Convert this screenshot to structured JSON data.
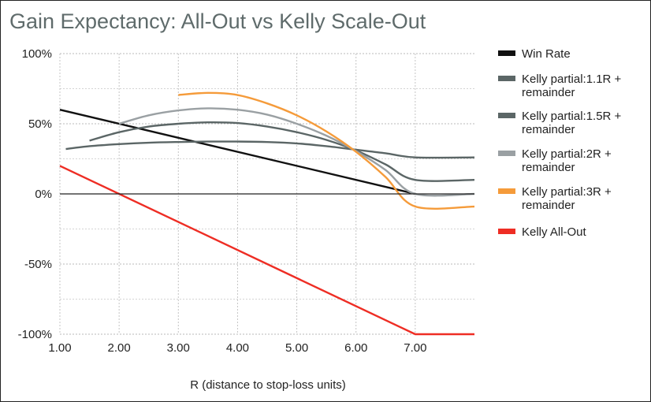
{
  "chart_data": {
    "type": "line",
    "title": "Gain Expectancy: All-Out vs Kelly Scale-Out",
    "xlabel": "R (distance to stop-loss units)",
    "ylabel": "",
    "xlim": [
      1.0,
      8.0
    ],
    "ylim": [
      -100,
      100
    ],
    "x_ticks": [
      "1.00",
      "2.00",
      "3.00",
      "4.00",
      "5.00",
      "6.00",
      "7.00"
    ],
    "x_tick_values": [
      1,
      2,
      3,
      4,
      5,
      6,
      7
    ],
    "y_ticks": [
      "100%",
      "50%",
      "0%",
      "-50%",
      "-100%"
    ],
    "y_tick_values": [
      100,
      50,
      0,
      -50,
      -100
    ],
    "grid": "dotted-both",
    "legend_position": "right",
    "series": [
      {
        "name": "Win Rate",
        "color": "#111111",
        "points": [
          [
            1.0,
            60
          ],
          [
            7.0,
            0
          ]
        ]
      },
      {
        "name": "Kelly partial:1.1R + remainder",
        "color": "#5b6666",
        "points": [
          [
            1.1,
            32
          ],
          [
            1.5,
            34
          ],
          [
            2.0,
            35.5
          ],
          [
            2.5,
            36.5
          ],
          [
            3.0,
            37
          ],
          [
            3.5,
            37.3
          ],
          [
            4.0,
            37.3
          ],
          [
            4.5,
            37
          ],
          [
            5.0,
            36
          ],
          [
            5.5,
            34
          ],
          [
            6.0,
            31.5
          ],
          [
            6.5,
            29
          ],
          [
            7.0,
            26
          ],
          [
            8.0,
            26
          ]
        ]
      },
      {
        "name": "Kelly partial:1.5R + remainder",
        "color": "#5b6666",
        "points": [
          [
            1.5,
            38
          ],
          [
            2.0,
            44
          ],
          [
            2.5,
            48
          ],
          [
            3.0,
            50
          ],
          [
            3.5,
            51
          ],
          [
            4.0,
            50.5
          ],
          [
            4.5,
            48
          ],
          [
            5.0,
            44
          ],
          [
            5.5,
            38.5
          ],
          [
            6.0,
            31
          ],
          [
            6.5,
            21
          ],
          [
            7.0,
            10
          ],
          [
            8.0,
            10
          ]
        ]
      },
      {
        "name": "Kelly partial:2R + remainder",
        "color": "#9aa0a3",
        "points": [
          [
            2.0,
            50
          ],
          [
            2.5,
            56
          ],
          [
            3.0,
            59.5
          ],
          [
            3.5,
            61
          ],
          [
            4.0,
            60
          ],
          [
            4.5,
            56.5
          ],
          [
            5.0,
            50
          ],
          [
            5.5,
            41.5
          ],
          [
            6.0,
            30.5
          ],
          [
            6.5,
            17
          ],
          [
            7.0,
            0
          ],
          [
            8.0,
            0
          ]
        ]
      },
      {
        "name": "Kelly partial:3R + remainder",
        "color": "#f59b3a",
        "points": [
          [
            3.0,
            70.5
          ],
          [
            3.5,
            72
          ],
          [
            4.0,
            70.5
          ],
          [
            4.5,
            64.5
          ],
          [
            5.0,
            56
          ],
          [
            5.5,
            44.5
          ],
          [
            6.0,
            30
          ],
          [
            6.5,
            12
          ],
          [
            7.0,
            -9
          ],
          [
            8.0,
            -9
          ]
        ]
      },
      {
        "name": "Kelly All-Out",
        "color": "#ee2d24",
        "points": [
          [
            1.0,
            20
          ],
          [
            7.0,
            -100
          ],
          [
            8.0,
            -100
          ]
        ]
      }
    ],
    "legend_labels": [
      [
        "Win Rate"
      ],
      [
        "Kelly partial:1.1R +",
        "remainder"
      ],
      [
        "Kelly partial:1.5R +",
        "remainder"
      ],
      [
        "Kelly partial:2R +",
        "remainder"
      ],
      [
        "Kelly partial:3R +",
        "remainder"
      ],
      [
        "Kelly All-Out"
      ]
    ]
  }
}
